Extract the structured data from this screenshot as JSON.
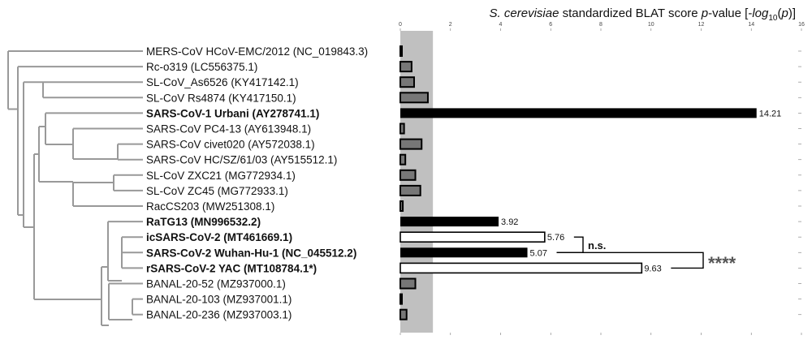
{
  "chart_data": {
    "type": "bar",
    "orientation": "horizontal",
    "title_parts": [
      "S. cerevisiae",
      " standardized BLAT score ",
      "p",
      "-value [-",
      "log",
      "10",
      "(",
      "p",
      ")]"
    ],
    "x_ticks": [
      "0",
      "2",
      "4",
      "6",
      "8",
      "10",
      "12",
      "14",
      "16"
    ],
    "xlim": [
      0,
      16
    ],
    "threshold_band": [
      0,
      1.3
    ],
    "categories": [
      "MERS-CoV HCoV-EMC/2012 (NC_019843.3)",
      "Rc-o319 (LC556375.1)",
      "SL-CoV_As6526 (KY417142.1)",
      "SL-CoV Rs4874 (KY417150.1)",
      "SARS-CoV-1 Urbani (AY278741.1)",
      "SARS-CoV PC4-13 (AY613948.1)",
      "SARS-CoV civet020 (AY572038.1)",
      "SARS-CoV HC/SZ/61/03 (AY515512.1)",
      "SL-CoV ZXC21 (MG772934.1)",
      "SL-CoV ZC45 (MG772933.1)",
      "RacCS203 (MW251308.1)",
      "RaTG13 (MN996532.2)",
      "icSARS-CoV-2 (MT461669.1)",
      "SARS-CoV-2 Wuhan-Hu-1 (NC_045512.2)",
      "rSARS-CoV-2 YAC (MT108784.1*)",
      "BANAL-20-52 (MZ937000.1)",
      "BANAL-20-103 (MZ937001.1)",
      "BANAL-20-236 (MZ937003.1)"
    ],
    "values": [
      0.05,
      0.45,
      0.55,
      1.1,
      14.21,
      0.15,
      0.85,
      0.2,
      0.6,
      0.8,
      0.1,
      3.92,
      5.76,
      5.07,
      9.63,
      0.6,
      0.05,
      0.25
    ],
    "bold": [
      false,
      false,
      false,
      false,
      true,
      false,
      false,
      false,
      false,
      false,
      false,
      true,
      true,
      true,
      true,
      false,
      false,
      false
    ],
    "styles": [
      "gray",
      "gray",
      "gray",
      "gray",
      "black",
      "gray",
      "gray",
      "gray",
      "gray",
      "gray",
      "gray",
      "black",
      "white",
      "black",
      "white",
      "gray",
      "gray",
      "gray"
    ],
    "value_labels": [
      "",
      "",
      "",
      "",
      "14.21",
      "",
      "",
      "",
      "",
      "",
      "",
      "3.92",
      "5.76",
      "5.07",
      "9.63",
      "",
      "",
      ""
    ],
    "significance": [
      {
        "rows": [
          12,
          13
        ],
        "label": "n.s."
      },
      {
        "rows": [
          13,
          14
        ],
        "label": "****"
      }
    ],
    "colors": {
      "black_bar": "#000000",
      "gray_bar": "#777777",
      "white_bar": "#ffffff",
      "band": "#c0c0c0",
      "tree": "#999999"
    }
  }
}
